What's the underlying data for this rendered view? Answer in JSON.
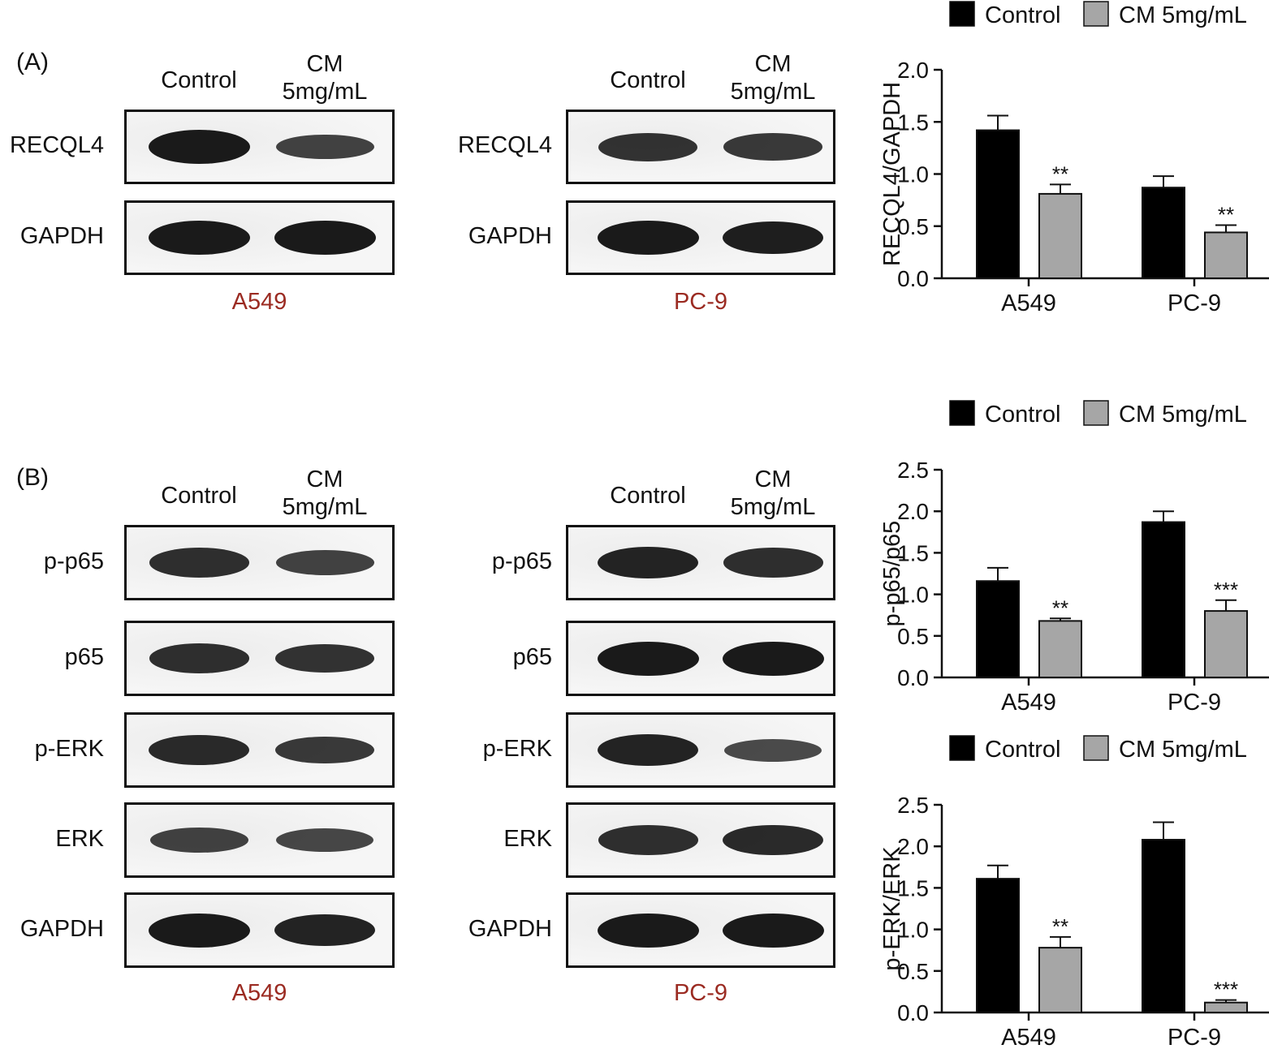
{
  "panels": [
    {
      "label": "(A)"
    },
    {
      "label": "(B)"
    }
  ],
  "lanes": [
    "Control",
    "CM\n5mg/mL"
  ],
  "cell_lines": [
    "A549",
    "PC-9"
  ],
  "blots": {
    "A": {
      "rows": [
        "RECQL4",
        "GAPDH"
      ],
      "A549": [
        [
          1.0,
          0.6
        ],
        [
          1.0,
          1.0
        ]
      ],
      "PC-9": [
        [
          0.75,
          0.7
        ],
        [
          1.0,
          0.95
        ]
      ]
    },
    "B": {
      "rows": [
        "p-p65",
        "p65",
        "p-ERK",
        "ERK",
        "GAPDH"
      ],
      "A549": [
        [
          0.8,
          0.6
        ],
        [
          0.8,
          0.75
        ],
        [
          0.85,
          0.7
        ],
        [
          0.6,
          0.55
        ],
        [
          1.0,
          0.9
        ]
      ],
      "PC-9": [
        [
          0.9,
          0.8
        ],
        [
          1.0,
          1.0
        ],
        [
          0.9,
          0.5
        ],
        [
          0.8,
          0.85
        ],
        [
          1.0,
          1.0
        ]
      ]
    }
  },
  "colors": {
    "control": "#000000",
    "treated": "#a6a6a6",
    "cell_line_label": "#9b2b22"
  },
  "chart_data": [
    {
      "type": "bar",
      "categories": [
        "A549",
        "PC-9"
      ],
      "series": [
        {
          "name": "Control",
          "values": [
            1.42,
            0.87
          ],
          "errors": [
            0.14,
            0.11
          ],
          "sig": [
            "",
            ""
          ]
        },
        {
          "name": "CM 5mg/mL",
          "values": [
            0.81,
            0.44
          ],
          "errors": [
            0.09,
            0.07
          ],
          "sig": [
            "**",
            "**"
          ]
        }
      ],
      "ylabel": "RECQL4/GAPDH",
      "ylim": [
        0,
        2.0
      ],
      "yticks": [
        0.0,
        0.5,
        1.0,
        1.5,
        2.0
      ],
      "legend": "top"
    },
    {
      "type": "bar",
      "categories": [
        "A549",
        "PC-9"
      ],
      "series": [
        {
          "name": "Control",
          "values": [
            1.16,
            1.87
          ],
          "errors": [
            0.16,
            0.13
          ],
          "sig": [
            "",
            ""
          ]
        },
        {
          "name": "CM 5mg/mL",
          "values": [
            0.68,
            0.8
          ],
          "errors": [
            0.03,
            0.13
          ],
          "sig": [
            "**",
            "***"
          ]
        }
      ],
      "ylabel": "p-p65/p65",
      "ylim": [
        0,
        2.5
      ],
      "yticks": [
        0.0,
        0.5,
        1.0,
        1.5,
        2.0,
        2.5
      ],
      "legend": "top"
    },
    {
      "type": "bar",
      "categories": [
        "A549",
        "PC-9"
      ],
      "series": [
        {
          "name": "Control",
          "values": [
            1.61,
            2.08
          ],
          "errors": [
            0.16,
            0.21
          ],
          "sig": [
            "",
            ""
          ]
        },
        {
          "name": "CM 5mg/mL",
          "values": [
            0.78,
            0.12
          ],
          "errors": [
            0.13,
            0.03
          ],
          "sig": [
            "**",
            "***"
          ]
        }
      ],
      "ylabel": "p-ERK/ERK",
      "ylim": [
        0,
        2.5
      ],
      "yticks": [
        0.0,
        0.5,
        1.0,
        1.5,
        2.0,
        2.5
      ],
      "legend": "top"
    }
  ]
}
